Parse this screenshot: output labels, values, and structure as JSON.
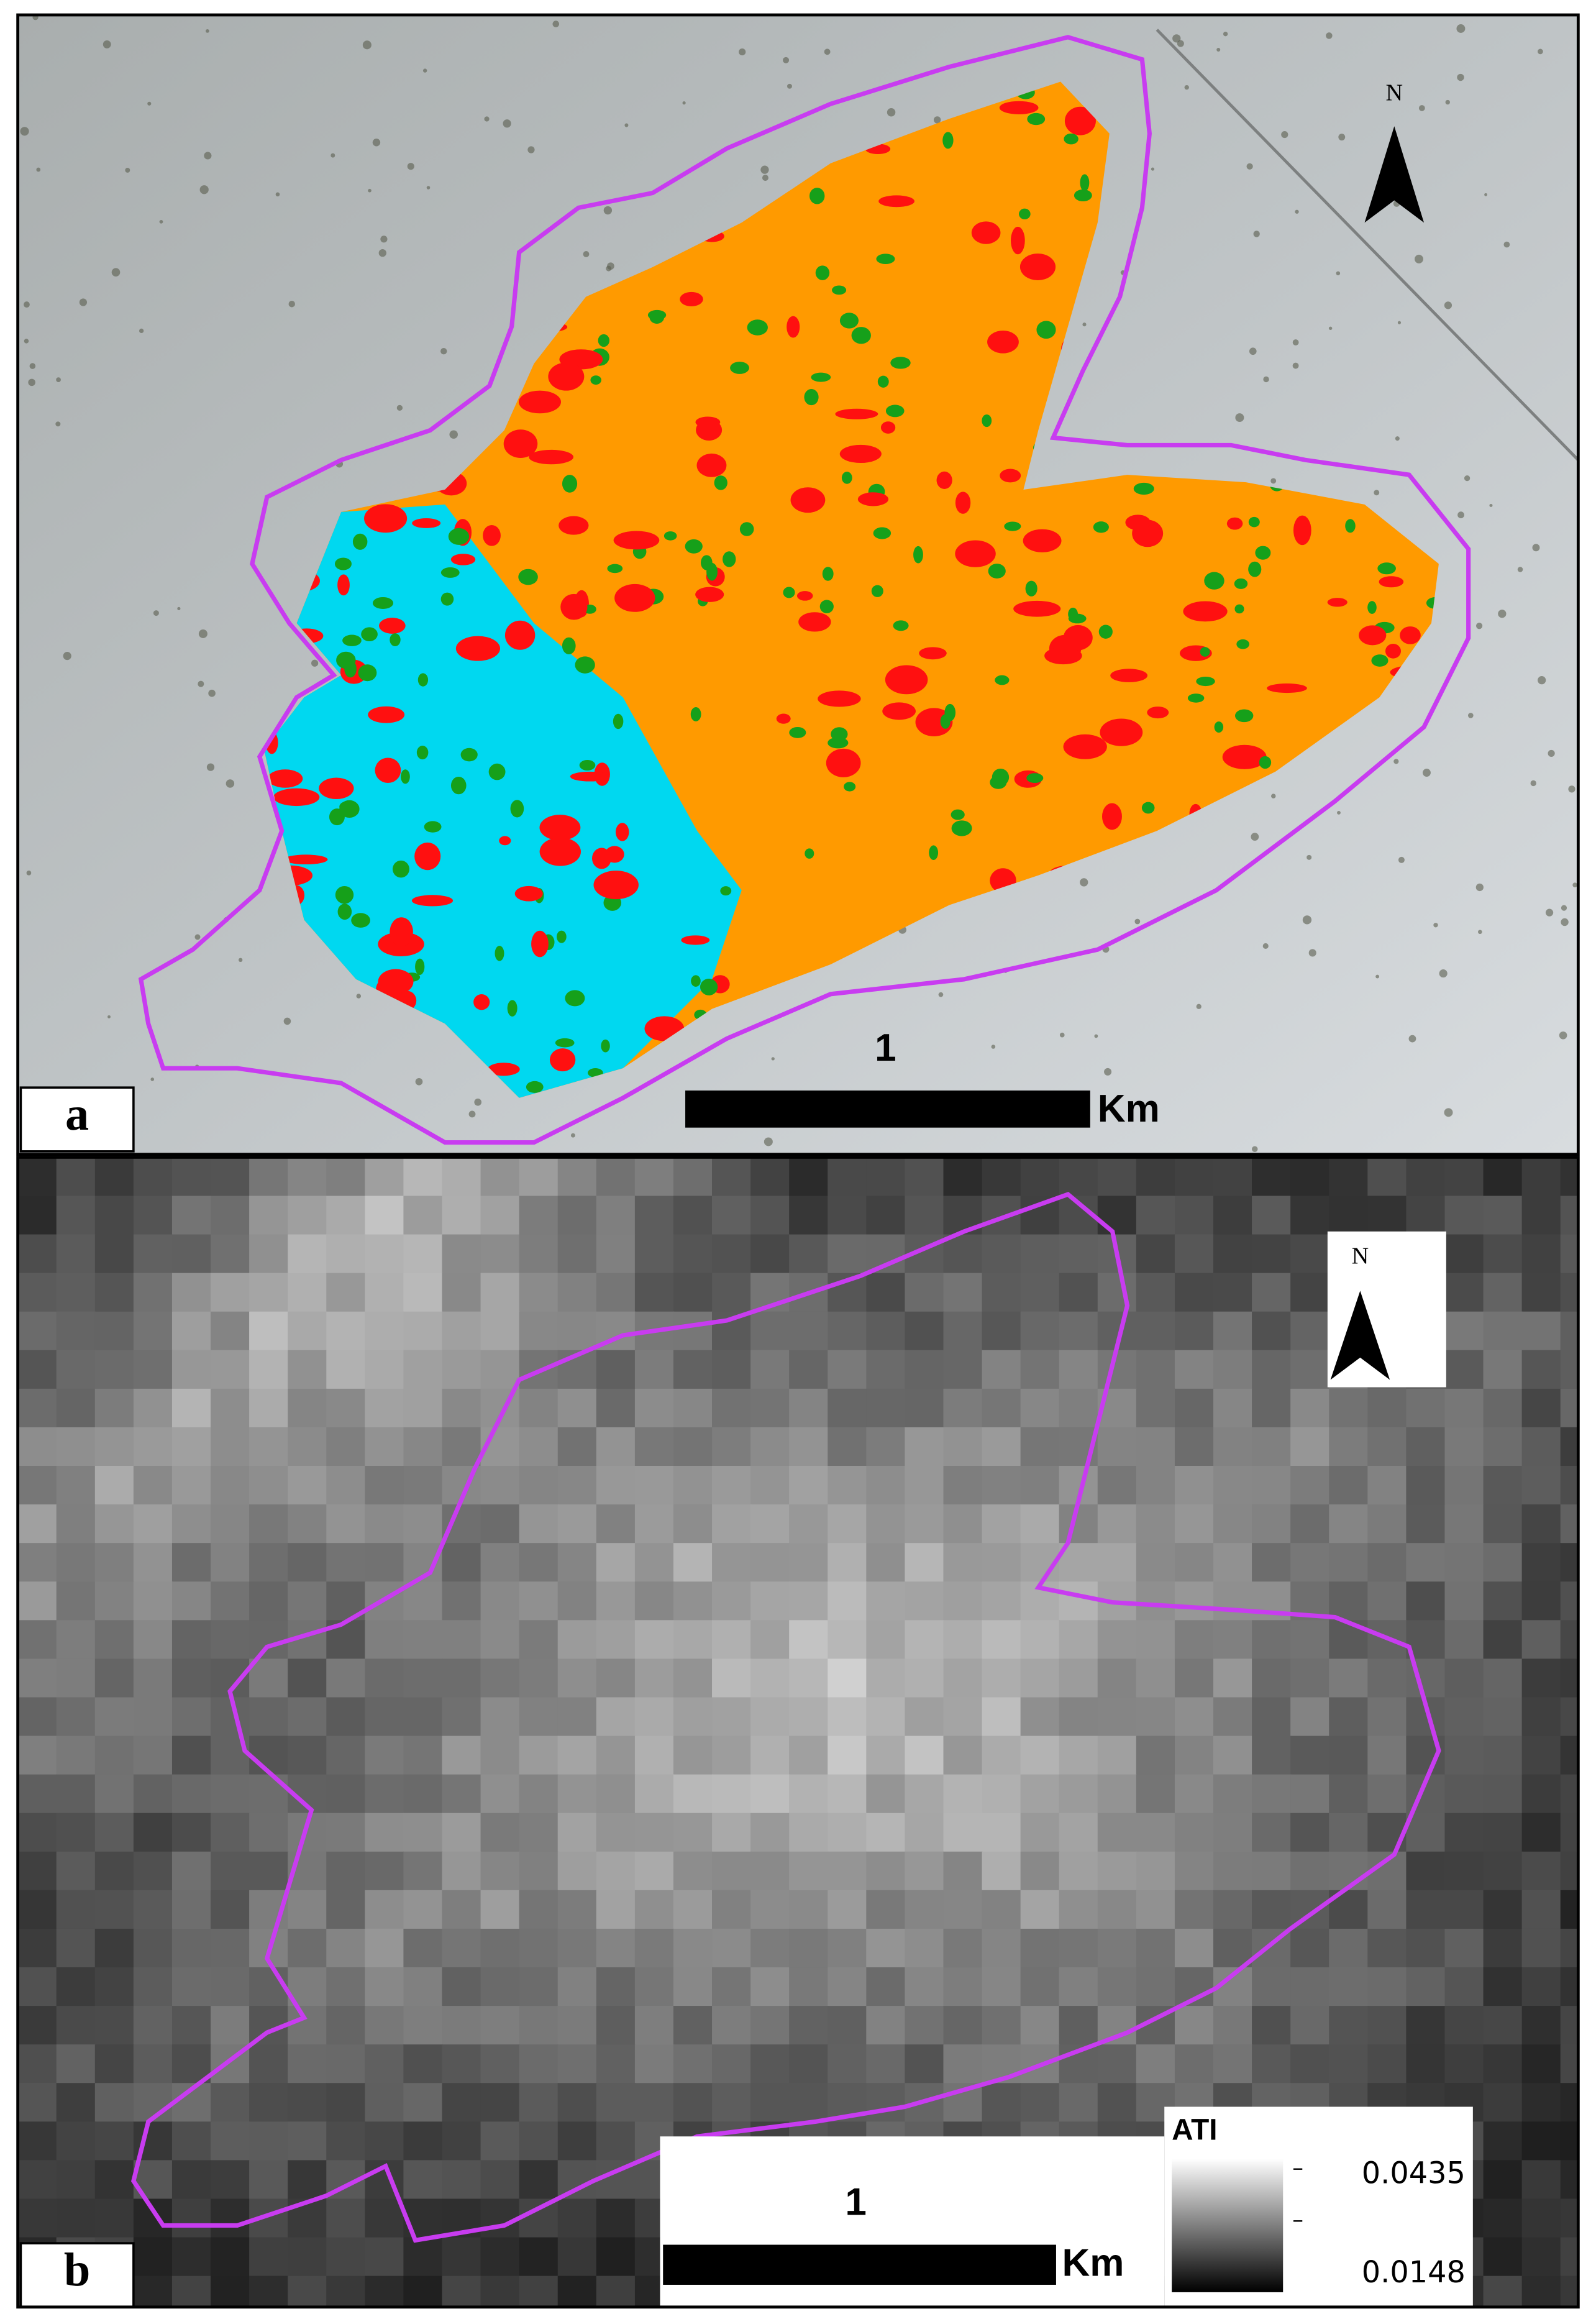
{
  "panels": [
    {
      "label": "a",
      "north": "N",
      "scale_bar": {
        "distance": 1,
        "unit": "Km"
      }
    },
    {
      "label": "b",
      "north": "N",
      "scale_bar": {
        "distance": 1,
        "unit": "Km"
      },
      "legend": {
        "title": "ATI",
        "max": 0.0435,
        "min": 0.0148
      }
    }
  ]
}
